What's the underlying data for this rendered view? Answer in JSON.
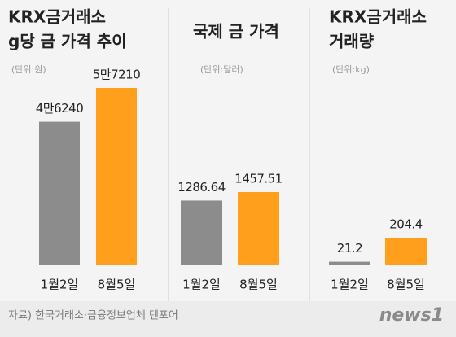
{
  "chart_data": [
    {
      "type": "bar",
      "title": [
        "KRX금거래소",
        "g당 금 가격 추이"
      ],
      "unit": "(단위:원)",
      "categories": [
        "1월2일",
        "8월5일"
      ],
      "values": [
        46240,
        57210
      ],
      "value_labels": [
        "4만6240",
        "5만7210"
      ],
      "colors": [
        "#8c8c8c",
        "#ff9f1c"
      ]
    },
    {
      "type": "bar",
      "title": [
        "국제 금 가격"
      ],
      "unit": "(단위:달러)",
      "categories": [
        "1월2일",
        "8월5일"
      ],
      "values": [
        1286.64,
        1457.51
      ],
      "colors": [
        "#8c8c8c",
        "#ff9f1c"
      ]
    },
    {
      "type": "bar",
      "title": [
        "KRX금거래소",
        "거래량"
      ],
      "unit": "(단위:kg)",
      "categories": [
        "1월2일",
        "8월5일"
      ],
      "values": [
        21.2,
        204.4
      ],
      "colors": [
        "#8c8c8c",
        "#ff9f1c"
      ]
    }
  ],
  "source": "자료) 한국거래소·금융정보업체 텐포어",
  "logo": "news1"
}
